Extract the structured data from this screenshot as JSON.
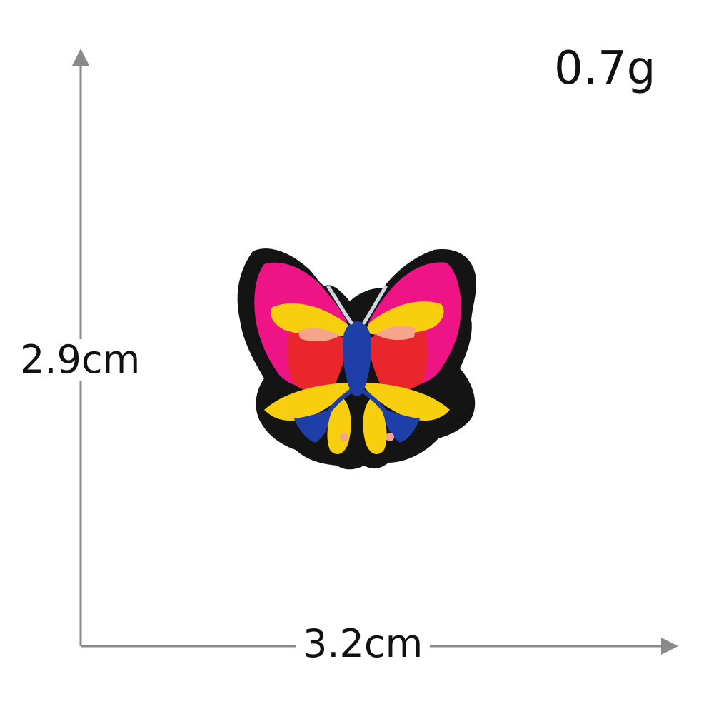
{
  "product": {
    "name": "Embroidered butterfly patch",
    "weight_label": "0.7g"
  },
  "dimensions": {
    "height_label": "2.9cm",
    "width_label": "3.2cm"
  },
  "colors": {
    "axis": "#8a8a8a",
    "text": "#111111",
    "patch_border": "#141414",
    "wing_pink": "#ee1486",
    "wing_red": "#e8262c",
    "wing_yellow": "#f8cf0e",
    "wing_peach": "#f4a58b",
    "body_blue": "#1f3fa8",
    "antenna": "#cfd6e0"
  }
}
